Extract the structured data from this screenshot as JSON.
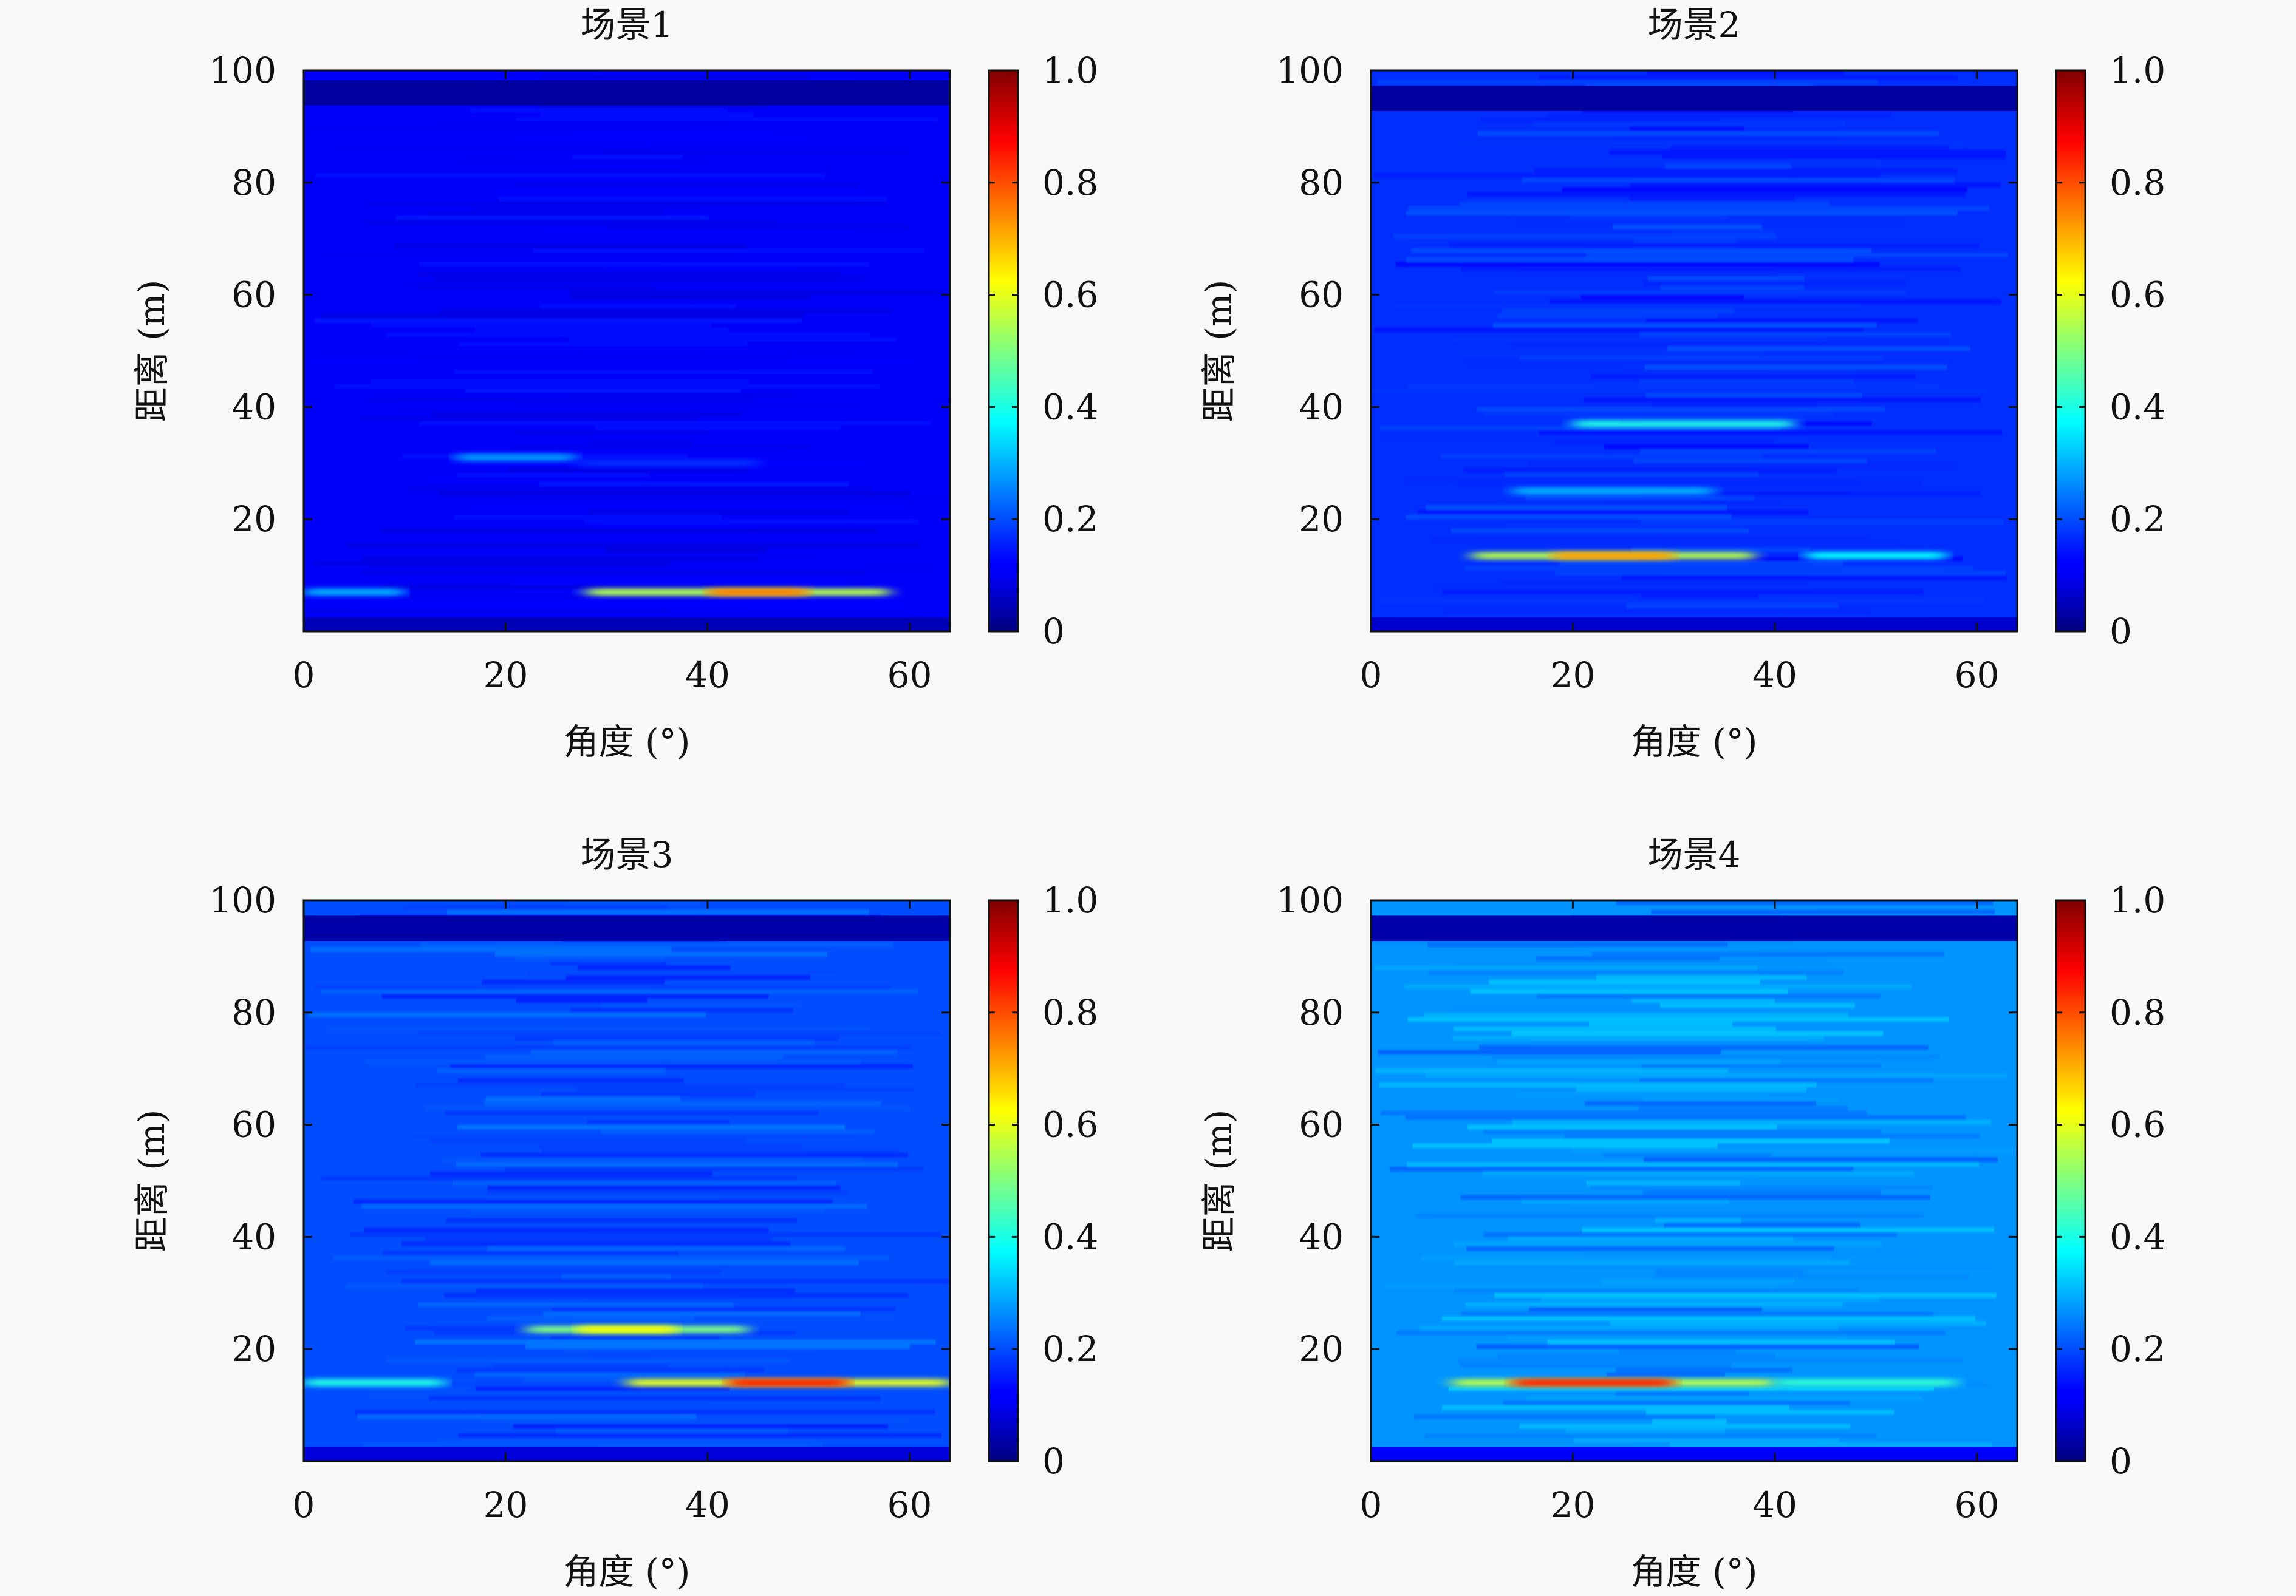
{
  "chart_data": [
    {
      "type": "heatmap",
      "title": "场景1",
      "xlabel": "角度 (°)",
      "ylabel": "距离 (m)",
      "xlim": [
        0,
        64
      ],
      "ylim": [
        0,
        100
      ],
      "xticks": [
        "0",
        "20",
        "40",
        "60"
      ],
      "yticks": [
        "20",
        "40",
        "60",
        "80",
        "100"
      ],
      "colorbar": {
        "range": [
          0,
          1
        ],
        "ticks": [
          "0",
          "0.2",
          "0.4",
          "0.6",
          "0.8",
          "1.0"
        ],
        "colormap": "jet"
      },
      "background_value": 0.12,
      "bands": [
        {
          "range_m": 96,
          "angle_from": 0,
          "angle_to": 64,
          "value": 0.03
        },
        {
          "range_m": 7,
          "angle_from": 0,
          "angle_to": 10,
          "value": 0.3
        },
        {
          "range_m": 7,
          "angle_from": 28,
          "angle_to": 58,
          "value": 0.55
        },
        {
          "range_m": 7,
          "angle_from": 40,
          "angle_to": 50,
          "value": 0.75
        },
        {
          "range_m": 31,
          "angle_from": 15,
          "angle_to": 27,
          "value": 0.28
        },
        {
          "range_m": 30,
          "angle_from": 27,
          "angle_to": 45,
          "value": 0.17
        }
      ]
    },
    {
      "type": "heatmap",
      "title": "场景2",
      "xlabel": "角度 (°)",
      "ylabel": "距离 (m)",
      "xlim": [
        0,
        64
      ],
      "ylim": [
        0,
        100
      ],
      "xticks": [
        "0",
        "20",
        "40",
        "60"
      ],
      "yticks": [
        "20",
        "40",
        "60",
        "80",
        "100"
      ],
      "colorbar": {
        "range": [
          0,
          1
        ],
        "ticks": [
          "0",
          "0.2",
          "0.4",
          "0.6",
          "0.8",
          "1.0"
        ],
        "colormap": "jet"
      },
      "background_value": 0.17,
      "bands": [
        {
          "range_m": 95,
          "angle_from": 0,
          "angle_to": 64,
          "value": 0.03
        },
        {
          "range_m": 37,
          "angle_from": 20,
          "angle_to": 42,
          "value": 0.4
        },
        {
          "range_m": 25,
          "angle_from": 14,
          "angle_to": 34,
          "value": 0.3
        },
        {
          "range_m": 13.5,
          "angle_from": 10,
          "angle_to": 38,
          "value": 0.55
        },
        {
          "range_m": 13.5,
          "angle_from": 18,
          "angle_to": 30,
          "value": 0.72
        },
        {
          "range_m": 13.5,
          "angle_from": 43,
          "angle_to": 57,
          "value": 0.38
        }
      ]
    },
    {
      "type": "heatmap",
      "title": "场景3",
      "xlabel": "角度 (°)",
      "ylabel": "距离 (m)",
      "xlim": [
        0,
        64
      ],
      "ylim": [
        0,
        100
      ],
      "xticks": [
        "0",
        "20",
        "40",
        "60"
      ],
      "yticks": [
        "20",
        "40",
        "60",
        "80",
        "100"
      ],
      "colorbar": {
        "range": [
          0,
          1
        ],
        "ticks": [
          "0",
          "0.2",
          "0.4",
          "0.6",
          "0.8",
          "1.0"
        ],
        "colormap": "jet"
      },
      "background_value": 0.2,
      "bands": [
        {
          "range_m": 95,
          "angle_from": 0,
          "angle_to": 64,
          "value": 0.04
        },
        {
          "range_m": 23.5,
          "angle_from": 22,
          "angle_to": 44,
          "value": 0.5
        },
        {
          "range_m": 23.5,
          "angle_from": 27,
          "angle_to": 37,
          "value": 0.62
        },
        {
          "range_m": 14,
          "angle_from": 0,
          "angle_to": 14,
          "value": 0.4
        },
        {
          "range_m": 14,
          "angle_from": 32,
          "angle_to": 64,
          "value": 0.6
        },
        {
          "range_m": 14,
          "angle_from": 42,
          "angle_to": 54,
          "value": 0.85
        }
      ]
    },
    {
      "type": "heatmap",
      "title": "场景4",
      "xlabel": "角度 (°)",
      "ylabel": "距离 (m)",
      "xlim": [
        0,
        64
      ],
      "ylim": [
        0,
        100
      ],
      "xticks": [
        "0",
        "20",
        "40",
        "60"
      ],
      "yticks": [
        "20",
        "40",
        "60",
        "80",
        "100"
      ],
      "colorbar": {
        "range": [
          0,
          1
        ],
        "ticks": [
          "0",
          "0.2",
          "0.4",
          "0.6",
          "0.8",
          "1.0"
        ],
        "colormap": "jet"
      },
      "background_value": 0.27,
      "bands": [
        {
          "range_m": 95,
          "angle_from": 0,
          "angle_to": 64,
          "value": 0.04
        },
        {
          "range_m": 14,
          "angle_from": 8,
          "angle_to": 40,
          "value": 0.55
        },
        {
          "range_m": 14,
          "angle_from": 14,
          "angle_to": 30,
          "value": 0.85
        },
        {
          "range_m": 14,
          "angle_from": 40,
          "angle_to": 58,
          "value": 0.42
        }
      ]
    }
  ]
}
